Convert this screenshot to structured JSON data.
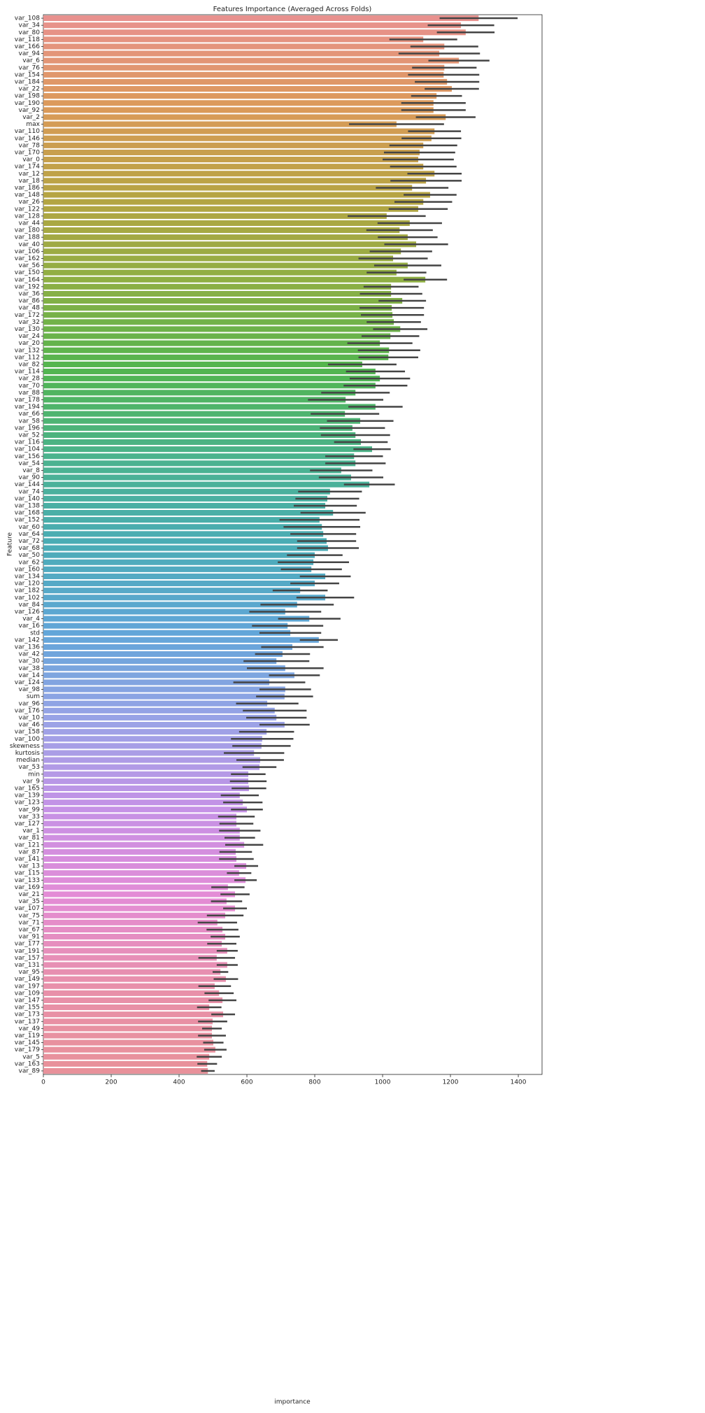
{
  "chart_data": {
    "type": "barh",
    "title": "Features Importance (Averaged Across Folds)",
    "x_label": "importance",
    "y_label": "Feature",
    "categories": [
      "var_108",
      "var_34",
      "var_80",
      "var_118",
      "var_166",
      "var_94",
      "var_6",
      "var_76",
      "var_154",
      "var_184",
      "var_22",
      "var_198",
      "var_190",
      "var_92",
      "var_2",
      "max",
      "var_110",
      "var_146",
      "var_78",
      "var_170",
      "var_0",
      "var_174",
      "var_12",
      "var_18",
      "var_186",
      "var_148",
      "var_26",
      "var_122",
      "var_128",
      "var_44",
      "var_180",
      "var_188",
      "var_40",
      "var_106",
      "var_162",
      "var_56",
      "var_150",
      "var_164",
      "var_192",
      "var_36",
      "var_86",
      "var_48",
      "var_172",
      "var_32",
      "var_130",
      "var_24",
      "var_20",
      "var_132",
      "var_112",
      "var_82",
      "var_114",
      "var_28",
      "var_70",
      "var_88",
      "var_178",
      "var_194",
      "var_66",
      "var_58",
      "var_196",
      "var_52",
      "var_116",
      "var_104",
      "var_156",
      "var_54",
      "var_8",
      "var_90",
      "var_144",
      "var_74",
      "var_140",
      "var_138",
      "var_168",
      "var_152",
      "var_60",
      "var_64",
      "var_72",
      "var_68",
      "var_50",
      "var_62",
      "var_160",
      "var_134",
      "var_120",
      "var_182",
      "var_102",
      "var_84",
      "var_126",
      "var_4",
      "var_16",
      "std",
      "var_142",
      "var_136",
      "var_42",
      "var_30",
      "var_38",
      "var_14",
      "var_124",
      "var_98",
      "sum",
      "var_96",
      "var_176",
      "var_10",
      "var_46",
      "var_158",
      "var_100",
      "skewness",
      "kurtosis",
      "median",
      "var_53",
      "min",
      "var_9",
      "var_165",
      "var_139",
      "var_123",
      "var_99",
      "var_33",
      "var_127",
      "var_1",
      "var_81",
      "var_121",
      "var_87",
      "var_141",
      "var_13",
      "var_115",
      "var_133",
      "var_169",
      "var_21",
      "var_35",
      "var_107",
      "var_75",
      "var_71",
      "var_67",
      "var_91",
      "var_177",
      "var_191",
      "var_157",
      "var_131",
      "var_95",
      "var_149",
      "var_197",
      "var_109",
      "var_147",
      "var_155",
      "var_173",
      "var_137",
      "var_49",
      "var_119",
      "var_145",
      "var_179",
      "var_5",
      "var_163",
      "var_89"
    ],
    "values": [
      1283,
      1231,
      1245,
      1120,
      1182,
      1167,
      1225,
      1182,
      1180,
      1190,
      1204,
      1159,
      1150,
      1150,
      1186,
      1041,
      1153,
      1144,
      1120,
      1109,
      1105,
      1120,
      1153,
      1128,
      1087,
      1140,
      1120,
      1105,
      1012,
      1080,
      1050,
      1074,
      1099,
      1054,
      1031,
      1074,
      1041,
      1126,
      1025,
      1025,
      1058,
      1027,
      1029,
      1033,
      1052,
      1023,
      992,
      1019,
      1017,
      940,
      979,
      992,
      979,
      920,
      891,
      979,
      889,
      934,
      911,
      920,
      936,
      969,
      916,
      920,
      878,
      907,
      961,
      845,
      837,
      831,
      854,
      814,
      821,
      825,
      835,
      839,
      800,
      796,
      790,
      831,
      800,
      757,
      831,
      748,
      713,
      784,
      720,
      728,
      812,
      734,
      705,
      687,
      713,
      740,
      666,
      713,
      711,
      660,
      682,
      687,
      711,
      658,
      645,
      643,
      621,
      639,
      637,
      604,
      604,
      606,
      579,
      588,
      600,
      569,
      569,
      579,
      579,
      592,
      567,
      569,
      598,
      577,
      596,
      544,
      565,
      540,
      565,
      536,
      513,
      528,
      536,
      526,
      542,
      511,
      542,
      522,
      538,
      505,
      518,
      528,
      489,
      530,
      499,
      497,
      497,
      501,
      507,
      489,
      483,
      485
    ],
    "errors": [
      115,
      98,
      85,
      100,
      100,
      120,
      90,
      95,
      105,
      95,
      80,
      75,
      95,
      95,
      88,
      140,
      78,
      88,
      100,
      105,
      105,
      98,
      80,
      105,
      107,
      78,
      85,
      87,
      115,
      95,
      98,
      88,
      94,
      92,
      102,
      99,
      88,
      64,
      81,
      92,
      70,
      95,
      93,
      80,
      80,
      85,
      96,
      92,
      88,
      101,
      87,
      89,
      94,
      101,
      111,
      80,
      101,
      98,
      96,
      102,
      79,
      55,
      85,
      89,
      92,
      95,
      75,
      94,
      94,
      93,
      96,
      118,
      113,
      97,
      87,
      91,
      82,
      105,
      90,
      75,
      72,
      81,
      85,
      108,
      106,
      92,
      105,
      91,
      56,
      92,
      81,
      97,
      113,
      75,
      106,
      76,
      84,
      92,
      94,
      89,
      74,
      81,
      92,
      86,
      89,
      70,
      50,
      51,
      54,
      51,
      56,
      58,
      47,
      54,
      50,
      61,
      45,
      56,
      48,
      51,
      35,
      36,
      33,
      49,
      43,
      46,
      35,
      54,
      58,
      47,
      43,
      43,
      31,
      54,
      31,
      23,
      36,
      48,
      43,
      41,
      36,
      35,
      43,
      29,
      41,
      30,
      33,
      37,
      29,
      20
    ],
    "palette": [
      "#e8918e",
      "#dc9a5a",
      "#b7a443",
      "#8eaf44",
      "#52b54f",
      "#4bb38d",
      "#4aacb6",
      "#62a6d9",
      "#9aa3e6",
      "#c592e6",
      "#e38cd6",
      "#e890ab",
      "#e8919a"
    ],
    "error_color": "#444444",
    "xlim": [
      0,
      1470
    ],
    "xticks": [
      0,
      200,
      400,
      600,
      800,
      1000,
      1200,
      1400
    ]
  }
}
